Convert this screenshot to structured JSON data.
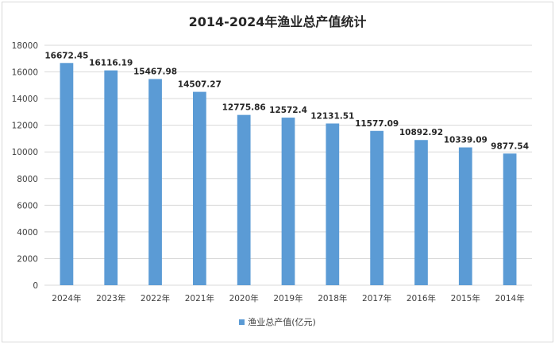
{
  "chart_data": {
    "type": "bar",
    "title": "2014-2024年渔业总产值统计",
    "categories": [
      "2024年",
      "2023年",
      "2022年",
      "2021年",
      "2020年",
      "2019年",
      "2018年",
      "2017年",
      "2016年",
      "2015年",
      "2014年"
    ],
    "series": [
      {
        "name": "渔业总产值(亿元)",
        "values": [
          16672.45,
          16116.19,
          15467.98,
          14507.27,
          12775.86,
          12572.4,
          12131.51,
          11577.09,
          10892.92,
          10339.09,
          9877.54
        ],
        "labels": [
          "16672.45",
          "16116.19",
          "15467.98",
          "14507.27",
          "12775.86",
          "12572.4",
          "12131.51",
          "11577.09",
          "10892.92",
          "10339.09",
          "9877.54"
        ],
        "color": "#5b9bd5"
      }
    ],
    "yticks": [
      "0",
      "2000",
      "4000",
      "6000",
      "8000",
      "10000",
      "12000",
      "14000",
      "16000",
      "18000"
    ],
    "ylim": [
      0,
      18000
    ],
    "xlabel": "",
    "ylabel": "",
    "grid": true,
    "legend_position": "bottom"
  }
}
